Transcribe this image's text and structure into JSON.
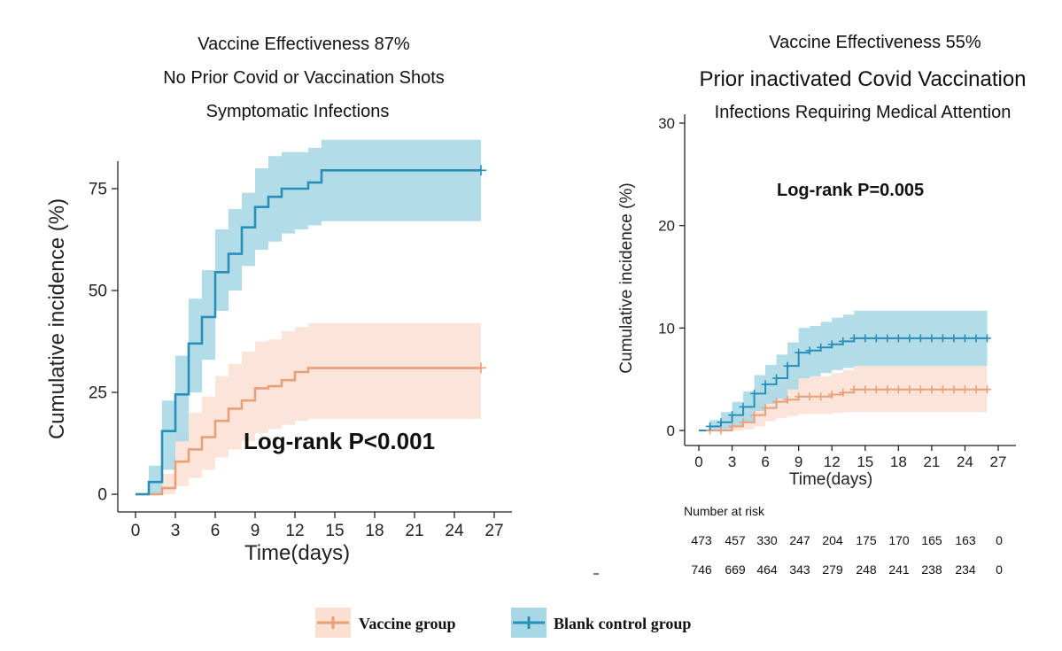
{
  "left_panel": {
    "title_lines": [
      "Vaccine Effectiveness 87%",
      "No Prior Covid or Vaccination Shots",
      "Symptomatic Infections"
    ]
  },
  "right_panel": {
    "title_lines": [
      "Vaccine Effectiveness 55%",
      "Prior inactivated Covid Vaccination",
      "Infections Requiring Medical Attention"
    ],
    "risk_table": {
      "heading": "Number at risk",
      "rows": [
        [
          "473",
          "457",
          "330",
          "247",
          "204",
          "175",
          "170",
          "165",
          "163",
          "0"
        ],
        [
          "746",
          "669",
          "464",
          "343",
          "279",
          "248",
          "241",
          "238",
          "234",
          "0"
        ]
      ]
    }
  },
  "legend": {
    "items": [
      {
        "label": "Vaccine group",
        "color": "#E8A07A"
      },
      {
        "label": "Blank control group",
        "color": "#2A8FB8"
      }
    ]
  },
  "colors": {
    "vaccine_line": "#E8A07A",
    "vaccine_band": "#FADFD2",
    "control_line": "#2A8FB8",
    "control_band": "#A8D8E6"
  },
  "chart_data": [
    {
      "type": "line",
      "subtype": "step",
      "xlabel": "Time(days)",
      "ylabel": "Cumulative incidence (%)",
      "xlim": [
        0,
        27
      ],
      "ylim": [
        0,
        80
      ],
      "xticks": [
        0,
        3,
        6,
        9,
        12,
        15,
        18,
        21,
        24,
        27
      ],
      "yticks": [
        0,
        25,
        50,
        75
      ],
      "annotation": "Log-rank P<0.001",
      "series": [
        {
          "name": "Vaccine group",
          "x": [
            0,
            1,
            2,
            3,
            4,
            5,
            6,
            7,
            8,
            9,
            10,
            11,
            12,
            13,
            26
          ],
          "y": [
            0,
            0,
            1.5,
            8,
            11,
            14,
            18,
            21,
            23,
            26,
            26.5,
            28,
            30,
            31,
            31
          ],
          "lower": [
            0,
            0,
            0,
            2,
            4,
            6,
            9,
            11,
            13,
            15,
            16,
            17,
            18,
            18.5,
            18.5
          ],
          "upper": [
            0,
            1,
            5,
            15,
            20,
            24,
            29,
            32,
            35,
            37.5,
            38,
            40,
            41,
            42,
            42
          ],
          "censor_x": [
            26
          ]
        },
        {
          "name": "Blank control group",
          "x": [
            0,
            1,
            2,
            3,
            4,
            5,
            6,
            7,
            8,
            9,
            10,
            11,
            12,
            13,
            14,
            26
          ],
          "y": [
            0,
            3,
            15.5,
            24.5,
            37,
            43.5,
            54.5,
            59,
            65.5,
            70.5,
            73,
            75,
            75,
            76.5,
            79.5,
            79.5
          ],
          "lower": [
            0,
            0,
            6,
            13,
            25,
            33,
            45,
            50,
            56,
            60,
            62,
            64,
            65,
            66,
            67,
            67
          ],
          "upper": [
            0,
            7,
            23,
            34,
            48,
            55,
            65,
            70,
            74,
            80,
            83,
            84,
            84,
            85,
            87,
            87
          ],
          "censor_x": [
            26
          ]
        }
      ]
    },
    {
      "type": "line",
      "subtype": "step",
      "xlabel": "Time(days)",
      "ylabel": "Cumulative incidence (%)",
      "xlim": [
        0,
        27
      ],
      "ylim": [
        0,
        30
      ],
      "xticks": [
        0,
        3,
        6,
        9,
        12,
        15,
        18,
        21,
        24,
        27
      ],
      "yticks": [
        0,
        10,
        20,
        30
      ],
      "annotation": "Log-rank P=0.005",
      "series": [
        {
          "name": "Vaccine group",
          "x": [
            0,
            2,
            3,
            4,
            5,
            6,
            7,
            8,
            9,
            12,
            13,
            14,
            26
          ],
          "y": [
            0,
            0,
            0.4,
            0.8,
            1.5,
            2.2,
            2.8,
            3.0,
            3.3,
            3.5,
            3.7,
            4.0,
            4.0
          ],
          "lower": [
            0,
            0,
            0,
            0.1,
            0.4,
            0.9,
            1.2,
            1.4,
            1.6,
            1.7,
            1.8,
            1.8,
            1.8
          ],
          "upper": [
            0,
            0.5,
            1,
            1.8,
            3.0,
            3.8,
            4.5,
            4.9,
            5.3,
            5.6,
            5.9,
            6.3,
            6.3
          ],
          "censor_x": [
            1,
            2,
            3,
            4,
            5,
            6,
            7,
            8,
            9,
            10,
            11,
            12,
            13,
            14,
            15,
            16,
            17,
            18,
            19,
            20,
            21,
            22,
            23,
            24,
            25,
            26
          ]
        },
        {
          "name": "Blank control group",
          "x": [
            0,
            1,
            2,
            3,
            4,
            5,
            6,
            7,
            8,
            9,
            10,
            11,
            12,
            13,
            14,
            26
          ],
          "y": [
            0,
            0.4,
            0.8,
            1.5,
            2.3,
            3.6,
            4.5,
            5.1,
            6.3,
            7.6,
            7.8,
            8.1,
            8.4,
            8.7,
            9.0,
            9.0
          ],
          "lower": [
            0,
            0,
            0.1,
            0.5,
            0.9,
            1.9,
            2.6,
            3.1,
            4.0,
            5.1,
            5.3,
            5.6,
            5.9,
            6.1,
            6.3,
            6.3
          ],
          "upper": [
            0,
            1.0,
            1.8,
            2.8,
            3.8,
            5.4,
            6.4,
            7.4,
            8.6,
            10.0,
            10.2,
            10.6,
            11.0,
            11.3,
            11.7,
            11.7
          ],
          "censor_x": [
            1,
            2,
            3,
            4,
            5,
            6,
            7,
            8,
            9,
            10,
            11,
            12,
            13,
            14,
            15,
            16,
            17,
            18,
            19,
            20,
            21,
            22,
            23,
            24,
            25,
            26
          ]
        }
      ]
    }
  ]
}
